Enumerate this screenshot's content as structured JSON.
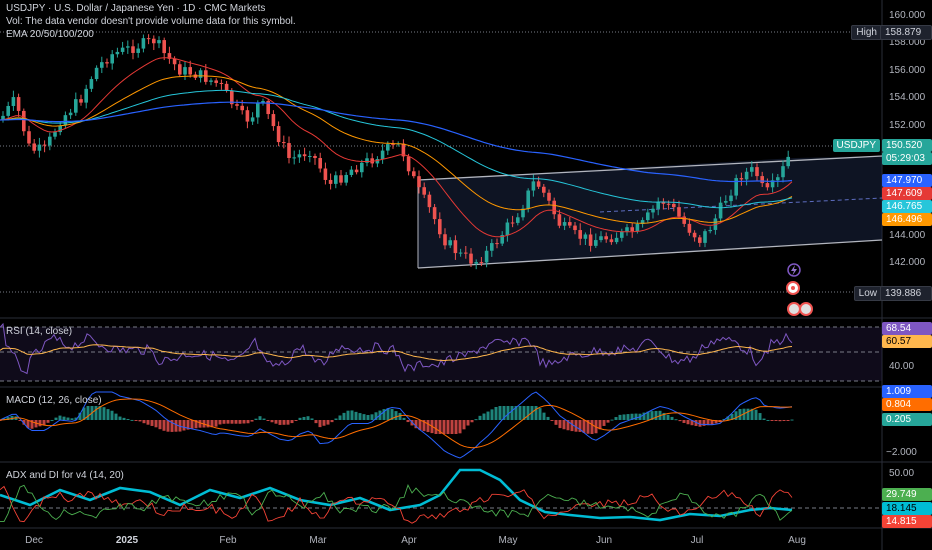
{
  "header": {
    "title": "USDJPY · U.S. Dollar / Japanese Yen · 1D · CMC Markets",
    "vol_note": "Vol: The data vendor doesn't provide volume data for this symbol.",
    "ema": "EMA 20/50/100/200"
  },
  "price_axis": {
    "ticks": [
      "160.000",
      "158.000",
      "156.000",
      "154.000",
      "152.000",
      "144.000",
      "142.000"
    ],
    "high_label": "High",
    "high_value": "158.879",
    "low_label": "Low",
    "low_value": "139.886",
    "symbol_tag": "USDJPY",
    "last_price": "150.520",
    "countdown": "05:29:03",
    "ema_values": [
      "147.970",
      "147.609",
      "146.765",
      "146.496"
    ]
  },
  "colors": {
    "bg": "#000000",
    "up": "#26a69a",
    "down": "#ef5350",
    "ema20": "#e53935",
    "ema50": "#ff9800",
    "ema100": "#26c6da",
    "ema200": "#2962ff",
    "rsi": "#7e57c2",
    "rsi_ma": "#ffb74d",
    "macd": "#2962ff",
    "signal": "#ff6d00",
    "adx": "#00bcd4",
    "di_plus": "#4caf50",
    "di_minus": "#f44336",
    "channel": "#b2b5be"
  },
  "rsi": {
    "title": "RSI (14, close)",
    "value": "68.54",
    "ma_value": "60.57",
    "tick": "40.00"
  },
  "macd": {
    "title": "MACD (12, 26, close)",
    "v1": "1.009",
    "v2": "0.804",
    "v3": "0.205",
    "tick": "−2.000"
  },
  "adx": {
    "title": "ADX and DI for v4 (14, 20)",
    "tick": "50.00",
    "v1": "29.749",
    "v2": "18.145",
    "v3": "14.815"
  },
  "x_axis": {
    "labels": [
      "Dec",
      "2025",
      "Feb",
      "Mar",
      "Apr",
      "May",
      "Jun",
      "Jul",
      "Aug"
    ]
  },
  "events": {
    "icons": [
      "lightning-icon",
      "flag-icon",
      "flag-icon"
    ]
  }
}
